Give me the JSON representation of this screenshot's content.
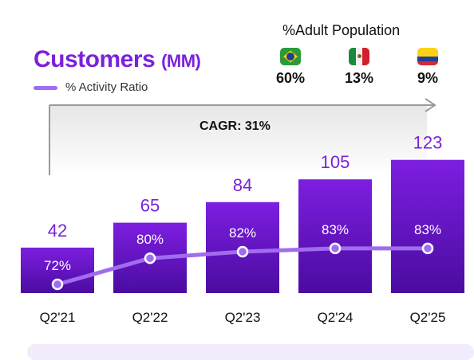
{
  "title": {
    "main": "Customers",
    "unit": "(MM)"
  },
  "legend": {
    "label": "% Activity Ratio",
    "color": "#a06cf0"
  },
  "adult_population": {
    "title": "%Adult Population",
    "countries": [
      {
        "flag_icon": "brazil-flag-icon",
        "value": "60%"
      },
      {
        "flag_icon": "mexico-flag-icon",
        "value": "13%"
      },
      {
        "flag_icon": "colombia-flag-icon",
        "value": "9%"
      }
    ]
  },
  "cagr": {
    "label": "CAGR: 31%"
  },
  "colors": {
    "bar_top": "#7d1ee0",
    "bar_bottom": "#4a0ca0",
    "value_label": "#7b22d9",
    "line": "#a06cf0"
  },
  "chart_data": {
    "type": "bar",
    "categories": [
      "Q2'21",
      "Q2'22",
      "Q2'23",
      "Q2'24",
      "Q2'25"
    ],
    "series": [
      {
        "values": [
          42,
          65,
          84,
          105,
          123
        ],
        "value_labels": [
          "42",
          "65",
          "84",
          "105",
          "123"
        ]
      },
      {
        "values": [
          72,
          80,
          82,
          83,
          83
        ],
        "value_labels": [
          "72%",
          "80%",
          "82%",
          "83%",
          "83%"
        ]
      }
    ],
    "grid": false
  }
}
